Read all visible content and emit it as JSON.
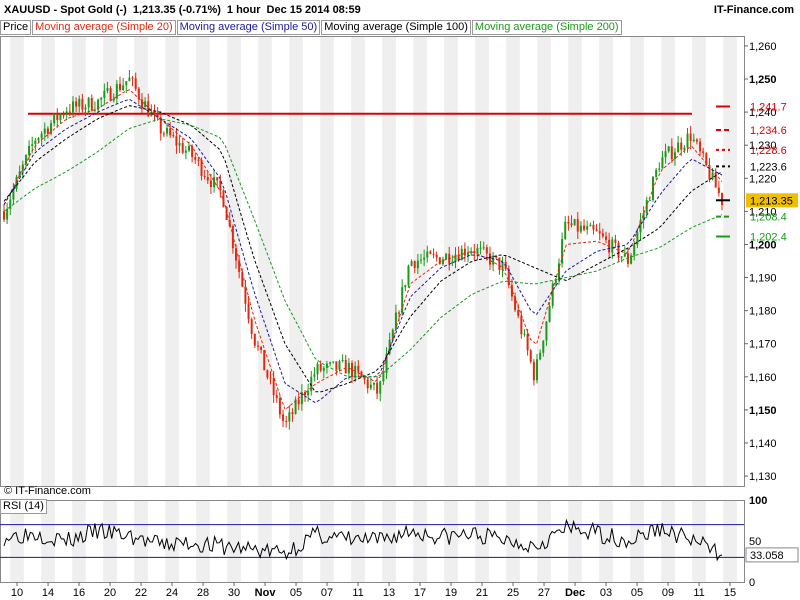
{
  "header": {
    "symbol": "XAUUSD - Spot Gold (-)",
    "price_change": "1,213.35 (-0.71%)",
    "interval": "1 hour",
    "timestamp": "Dec 15 2014 08:59",
    "brand": "IT-Finance.com"
  },
  "legend": {
    "price": "Price",
    "ma20": "Moving average (Simple 20)",
    "ma50": "Moving average (Simple 50)",
    "ma100": "Moving average (Simple 100)",
    "ma200": "Moving average (Simple 200)"
  },
  "copyright": "© IT-Finance.com",
  "rsi_label": "RSI (14)",
  "colors": {
    "up": "#1a9a1a",
    "down": "#e02a10",
    "ma20": "#e02a10",
    "ma50": "#1a1aa0",
    "ma100": "#000000",
    "ma200": "#1a9a1a",
    "resistance": "#dd0000",
    "current_price_bg": "#f0c000"
  },
  "chart_data": [
    {
      "type": "line",
      "title": "XAUUSD - Spot Gold (-)",
      "subtitle": "1 hour",
      "x_ticks": [
        "10",
        "14",
        "16",
        "20",
        "22",
        "24",
        "28",
        "30",
        "Nov",
        "05",
        "07",
        "11",
        "13",
        "17",
        "19",
        "21",
        "25",
        "27",
        "Dec",
        "03",
        "05",
        "09",
        "11",
        "15"
      ],
      "ylim": [
        1127,
        1263
      ],
      "y_ticks": [
        1130,
        1140,
        1150,
        1160,
        1170,
        1180,
        1190,
        1200,
        1210,
        1220,
        1230,
        1240,
        1250,
        1260
      ],
      "y_tick_labels": [
        "1,130",
        "1,140",
        "1,150",
        "1,160",
        "1,170",
        "1,180",
        "1,190",
        "1,200",
        "1,210",
        "1,220",
        "1,230",
        "1,240",
        "1,250",
        "1,260"
      ],
      "y_bold_ticks": [
        1150,
        1200,
        1250
      ],
      "grid": "vertical bands",
      "x": [
        "10",
        "14",
        "16",
        "20",
        "22",
        "24",
        "28",
        "30",
        "Nov",
        "05",
        "07",
        "11",
        "13",
        "17",
        "19",
        "21",
        "25",
        "27",
        "Dec",
        "03",
        "05",
        "09",
        "11",
        "15"
      ],
      "series": [
        {
          "name": "Price",
          "values": [
            1210,
            1232,
            1241,
            1243,
            1250,
            1235,
            1227,
            1215,
            1172,
            1145,
            1162,
            1163,
            1155,
            1195,
            1196,
            1199,
            1193,
            1160,
            1206,
            1203,
            1195,
            1225,
            1233,
            1213.35
          ]
        },
        {
          "name": "Moving average (Simple 20)",
          "values": [
            1212,
            1230,
            1238,
            1241,
            1247,
            1238,
            1230,
            1215,
            1178,
            1150,
            1158,
            1163,
            1158,
            1188,
            1195,
            1198,
            1193,
            1168,
            1200,
            1201,
            1197,
            1222,
            1230,
            1219
          ]
        },
        {
          "name": "Moving average (Simple 50)",
          "values": [
            1212,
            1228,
            1235,
            1240,
            1244,
            1238,
            1232,
            1219,
            1186,
            1158,
            1152,
            1160,
            1160,
            1184,
            1193,
            1197,
            1195,
            1178,
            1192,
            1198,
            1200,
            1215,
            1226,
            1221
          ]
        },
        {
          "name": "Moving average (Simple 100)",
          "values": [
            1213,
            1225,
            1232,
            1238,
            1242,
            1240,
            1236,
            1228,
            1196,
            1170,
            1155,
            1158,
            1162,
            1178,
            1189,
            1195,
            1197,
            1193,
            1189,
            1194,
            1199,
            1205,
            1216,
            1222
          ]
        },
        {
          "name": "Moving average (Simple 200)",
          "values": [
            1210,
            1217,
            1222,
            1228,
            1235,
            1238,
            1236,
            1232,
            1208,
            1183,
            1165,
            1160,
            1160,
            1168,
            1178,
            1185,
            1189,
            1188,
            1190,
            1192,
            1196,
            1199,
            1205,
            1209
          ]
        }
      ],
      "levels": [
        {
          "value": 1239.5,
          "label": ""
        },
        {
          "value": 1241.7,
          "label": "1,241.7"
        },
        {
          "value": 1234.6,
          "label": "1,234.6"
        },
        {
          "value": 1228.6,
          "label": "1,228.6"
        },
        {
          "value": 1223.6,
          "label": "1,223.6"
        },
        {
          "value": 1213.35,
          "label": "1,213.35"
        },
        {
          "value": 1208.4,
          "label": "1,208.4"
        },
        {
          "value": 1202.4,
          "label": "1,202.4"
        }
      ]
    },
    {
      "type": "line",
      "title": "RSI (14)",
      "ylim": [
        0,
        100
      ],
      "y_ticks": [
        0,
        50,
        100
      ],
      "y_tick_labels": [
        "0",
        "50",
        "100"
      ],
      "bands": [
        30,
        70
      ],
      "series": [
        {
          "name": "RSI (14)",
          "values": [
            55,
            60,
            50,
            62,
            56,
            45,
            48,
            43,
            40,
            35,
            58,
            52,
            50,
            62,
            55,
            58,
            52,
            45,
            65,
            60,
            50,
            65,
            52,
            33.058
          ]
        }
      ],
      "current_label": "33.058"
    }
  ]
}
